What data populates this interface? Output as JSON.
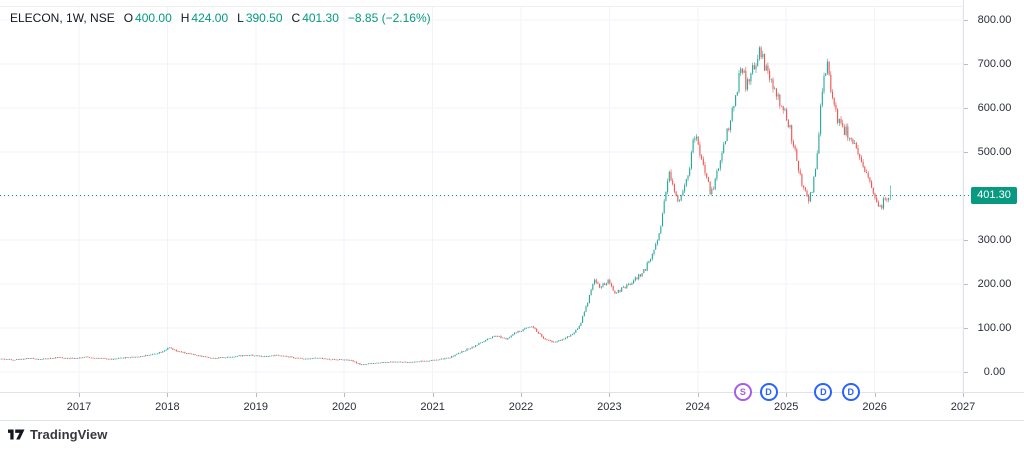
{
  "header": {
    "symbol": "ELECON, 1W, NSE",
    "ohlc": [
      {
        "label": "O",
        "value": "400.00"
      },
      {
        "label": "H",
        "value": "424.00"
      },
      {
        "label": "L",
        "value": "390.50"
      },
      {
        "label": "C",
        "value": "401.30"
      }
    ],
    "change": "−8.85 (−2.16%)"
  },
  "colors": {
    "up_candle": "#26a69a",
    "down_candle": "#ef5350",
    "accent_teal": "#089981",
    "badge_bg": "#089981",
    "grid": "#f0f3fa",
    "axis_border": "#e0e3eb",
    "axis_text": "#2a2e39",
    "legend_text": "#131722",
    "marker_blue": "#2962ff",
    "marker_purple": "#a45ee5"
  },
  "price_axis": {
    "ticks": [
      {
        "value": 800,
        "label": "800.00"
      },
      {
        "value": 700,
        "label": "700.00"
      },
      {
        "value": 600,
        "label": "600.00"
      },
      {
        "value": 500,
        "label": "500.00"
      },
      {
        "value": 300,
        "label": "300.00"
      },
      {
        "value": 200,
        "label": "200.00"
      },
      {
        "value": 100,
        "label": "100.00"
      },
      {
        "value": 0,
        "label": "0.00"
      }
    ],
    "hidden_tick_value": 400,
    "current_price_label": "401.30"
  },
  "time_axis": {
    "years": [
      "2017",
      "2018",
      "2019",
      "2020",
      "2021",
      "2022",
      "2023",
      "2024",
      "2025",
      "2026",
      "2027"
    ]
  },
  "event_markers": [
    {
      "letter": "S",
      "kind": "split",
      "t": 2024.51,
      "color": "#a45ee5"
    },
    {
      "letter": "D",
      "kind": "dividend",
      "t": 2024.8,
      "color": "#2962ff"
    },
    {
      "letter": "D",
      "kind": "dividend",
      "t": 2025.42,
      "color": "#2962ff"
    },
    {
      "letter": "D",
      "kind": "dividend",
      "t": 2025.73,
      "color": "#2962ff"
    }
  ],
  "footer": {
    "brand": "TradingView"
  },
  "chart_data": {
    "type": "candlestick",
    "symbol": "ELECON",
    "interval": "1W",
    "exchange": "NSE",
    "title": "ELECON, 1W, NSE",
    "price_range": [
      0,
      800
    ],
    "grid_step": 100,
    "x_domain_years": [
      2016.12,
      2026.17
    ],
    "current_price": 401.3,
    "last_candle": {
      "open": 400.0,
      "high": 424.0,
      "low": 390.5,
      "close": 401.3,
      "change": -8.85,
      "change_pct": -2.16
    },
    "all_time_high": 740,
    "weekly_close_anchors_note": "Approximate weekly close envelope [year_fraction, price] read from the plotted candles",
    "weekly_close_anchors": [
      [
        2016.12,
        30
      ],
      [
        2016.3,
        28
      ],
      [
        2016.45,
        31
      ],
      [
        2016.6,
        29
      ],
      [
        2016.78,
        33
      ],
      [
        2016.95,
        31
      ],
      [
        2017.1,
        34
      ],
      [
        2017.25,
        31
      ],
      [
        2017.4,
        29
      ],
      [
        2017.55,
        33
      ],
      [
        2017.7,
        35
      ],
      [
        2017.85,
        40
      ],
      [
        2017.95,
        46
      ],
      [
        2018.04,
        55
      ],
      [
        2018.12,
        47
      ],
      [
        2018.25,
        42
      ],
      [
        2018.4,
        36
      ],
      [
        2018.55,
        31
      ],
      [
        2018.7,
        34
      ],
      [
        2018.85,
        37
      ],
      [
        2018.95,
        39
      ],
      [
        2019.1,
        35
      ],
      [
        2019.25,
        38
      ],
      [
        2019.4,
        34
      ],
      [
        2019.55,
        30
      ],
      [
        2019.7,
        32
      ],
      [
        2019.85,
        29
      ],
      [
        2020.0,
        28
      ],
      [
        2020.1,
        26
      ],
      [
        2020.2,
        17
      ],
      [
        2020.32,
        19
      ],
      [
        2020.45,
        22
      ],
      [
        2020.6,
        23
      ],
      [
        2020.75,
        22
      ],
      [
        2020.9,
        25
      ],
      [
        2021.05,
        27
      ],
      [
        2021.2,
        32
      ],
      [
        2021.35,
        46
      ],
      [
        2021.5,
        60
      ],
      [
        2021.62,
        72
      ],
      [
        2021.75,
        82
      ],
      [
        2021.85,
        76
      ],
      [
        2021.95,
        88
      ],
      [
        2022.05,
        96
      ],
      [
        2022.13,
        107
      ],
      [
        2022.22,
        88
      ],
      [
        2022.3,
        72
      ],
      [
        2022.4,
        68
      ],
      [
        2022.5,
        76
      ],
      [
        2022.6,
        86
      ],
      [
        2022.68,
        105
      ],
      [
        2022.76,
        150
      ],
      [
        2022.84,
        210
      ],
      [
        2022.92,
        192
      ],
      [
        2023.0,
        206
      ],
      [
        2023.08,
        180
      ],
      [
        2023.16,
        188
      ],
      [
        2023.24,
        198
      ],
      [
        2023.32,
        212
      ],
      [
        2023.42,
        232
      ],
      [
        2023.52,
        275
      ],
      [
        2023.6,
        330
      ],
      [
        2023.66,
        420
      ],
      [
        2023.7,
        455
      ],
      [
        2023.75,
        410
      ],
      [
        2023.8,
        390
      ],
      [
        2023.87,
        425
      ],
      [
        2023.93,
        470
      ],
      [
        2023.98,
        540
      ],
      [
        2024.03,
        510
      ],
      [
        2024.08,
        470
      ],
      [
        2024.13,
        430
      ],
      [
        2024.17,
        405
      ],
      [
        2024.22,
        440
      ],
      [
        2024.28,
        485
      ],
      [
        2024.34,
        540
      ],
      [
        2024.4,
        580
      ],
      [
        2024.46,
        640
      ],
      [
        2024.51,
        705
      ],
      [
        2024.57,
        645
      ],
      [
        2024.63,
        680
      ],
      [
        2024.72,
        727
      ],
      [
        2024.78,
        695
      ],
      [
        2024.85,
        655
      ],
      [
        2024.92,
        622
      ],
      [
        2025.0,
        588
      ],
      [
        2025.07,
        545
      ],
      [
        2025.14,
        478
      ],
      [
        2025.2,
        425
      ],
      [
        2025.26,
        390
      ],
      [
        2025.32,
        415
      ],
      [
        2025.38,
        520
      ],
      [
        2025.44,
        680
      ],
      [
        2025.48,
        697
      ],
      [
        2025.53,
        640
      ],
      [
        2025.6,
        578
      ],
      [
        2025.67,
        552
      ],
      [
        2025.74,
        538
      ],
      [
        2025.8,
        508
      ],
      [
        2025.87,
        468
      ],
      [
        2025.93,
        445
      ],
      [
        2026.0,
        415
      ],
      [
        2026.05,
        388
      ],
      [
        2026.09,
        370
      ],
      [
        2026.13,
        392
      ],
      [
        2026.17,
        401.3
      ]
    ]
  }
}
